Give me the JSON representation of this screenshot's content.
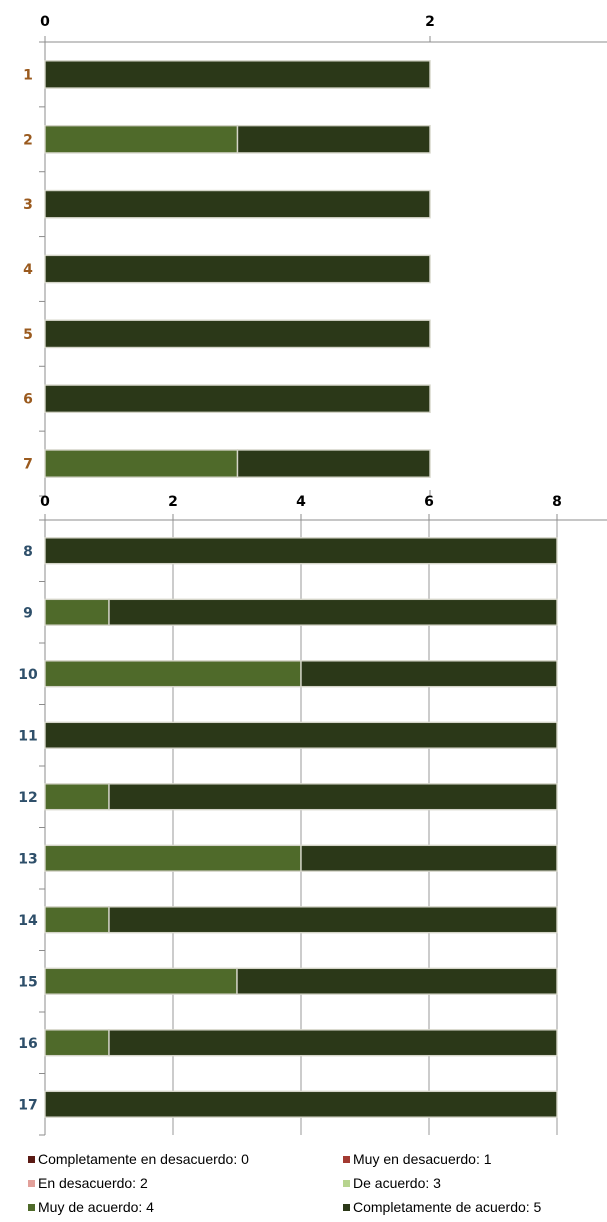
{
  "chart_data": [
    {
      "type": "bar",
      "stacked": true,
      "orientation": "horizontal",
      "categories": [
        "1",
        "2",
        "3",
        "4",
        "5",
        "6",
        "7"
      ],
      "category_label_color": "#9a5a1e",
      "xlim": [
        0,
        2
      ],
      "xticks": [
        "0",
        "2"
      ],
      "series": [
        {
          "name": "Muy de acuerdo: 4",
          "color": "#4f6a2a",
          "values": [
            0,
            1,
            0,
            0,
            0,
            0,
            1
          ]
        },
        {
          "name": "Completamente de acuerdo: 5",
          "color": "#2b3818",
          "values": [
            2,
            1,
            2,
            2,
            2,
            2,
            1
          ]
        }
      ],
      "grid": false
    },
    {
      "type": "bar",
      "stacked": true,
      "orientation": "horizontal",
      "categories": [
        "8",
        "9",
        "10",
        "11",
        "12",
        "13",
        "14",
        "15",
        "16",
        "17"
      ],
      "category_label_color": "#2e4f6a",
      "xlim": [
        0,
        8
      ],
      "xticks": [
        "0",
        "2",
        "4",
        "6",
        "8"
      ],
      "series": [
        {
          "name": "Muy de acuerdo: 4",
          "color": "#4f6a2a",
          "values": [
            0,
            1,
            4,
            0,
            1,
            4,
            1,
            3,
            1,
            0
          ]
        },
        {
          "name": "Completamente de acuerdo: 5",
          "color": "#2b3818",
          "values": [
            8,
            7,
            4,
            8,
            7,
            4,
            7,
            5,
            7,
            8
          ]
        }
      ],
      "grid": true
    }
  ],
  "legend": [
    {
      "label": "Completamente en desacuerdo: 0",
      "color": "#5a1a14"
    },
    {
      "label": "Muy en desacuerdo: 1",
      "color": "#a33a32"
    },
    {
      "label": "En desacuerdo: 2",
      "color": "#e2a09a"
    },
    {
      "label": "De acuerdo: 3",
      "color": "#b7d48f"
    },
    {
      "label": "Muy de acuerdo: 4",
      "color": "#4f6a2a"
    },
    {
      "label": "Completamente de acuerdo: 5",
      "color": "#2b3818"
    }
  ]
}
